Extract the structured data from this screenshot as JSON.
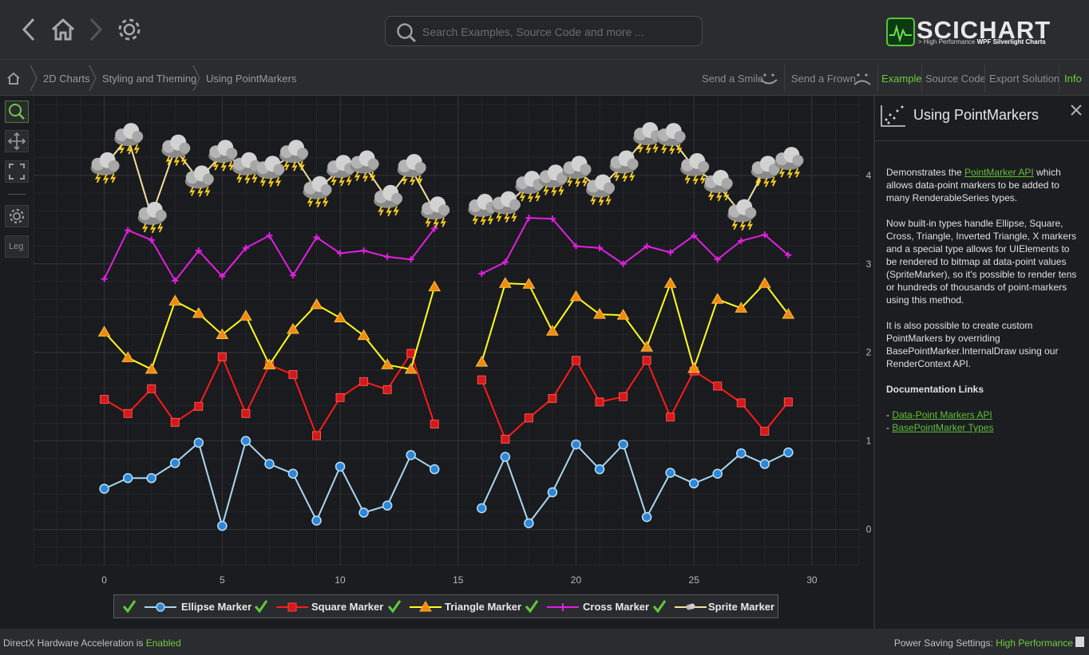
{
  "nav": {
    "back_icon": "chevron-left-icon",
    "home_icon": "home-icon",
    "forward_icon": "chevron-right-icon",
    "settings_icon": "gear-icon"
  },
  "search": {
    "placeholder": "Search Examples, Source Code and more ..."
  },
  "logo": {
    "word": "SCICHART",
    "tagline_prefix": "> High Performance ",
    "tagline_bold": "WPF Silverlight Charts"
  },
  "breadcrumb": [
    "2D Charts",
    "Styling and Theming",
    "Using PointMarkers"
  ],
  "actions": {
    "smile": "Send a Smile",
    "frown": "Send a Frown",
    "example": "Example",
    "source": "Source Code",
    "export": "Export Solution",
    "info": "Info"
  },
  "tools": {
    "legend_label": "Leg"
  },
  "panel": {
    "title": "Using PointMarkers",
    "p1_pre": "Demonstrates the ",
    "p1_link": "PointMarker API",
    "p1_post": " which allows data-point markers to be added to many RenderableSeries types.",
    "p2": "Now built-in types handle Ellipse, Square, Cross, Triangle, Inverted Triangle, X markers and a special type allows for UIElements to be rendered to bitmap at data-point values (SpriteMarker), so it's possible to render tens or hundreds of thousands of point-markers using this method.",
    "p3": "It is also possible to create custom PointMarkers by overriding BasePointMarker.InternalDraw using our RenderContext API.",
    "doc_heading": "Documentation Links",
    "link1": "Data-Point Markers API",
    "link2": "BasePointMarker Types",
    "dash": "- "
  },
  "status": {
    "left_label": "DirectX Hardware Acceleration is ",
    "left_value": "Enabled",
    "right_label": "Power Saving Settings: ",
    "right_value": "High Performance"
  },
  "legend": [
    "Ellipse Marker",
    "Square Marker",
    "Triangle Marker",
    "Cross Marker",
    "Sprite Marker"
  ],
  "chart_data": {
    "type": "line",
    "xlim": [
      -3,
      32
    ],
    "ylim": [
      -0.4,
      4.9
    ],
    "x_ticks": [
      0,
      5,
      10,
      15,
      20,
      25,
      30
    ],
    "y_ticks": [
      0,
      1,
      2,
      3,
      4
    ],
    "grid": true,
    "legend_position": "bottom-center",
    "x": [
      0,
      1,
      2,
      3,
      4,
      5,
      6,
      7,
      8,
      9,
      10,
      11,
      12,
      13,
      14,
      null,
      16,
      17,
      18,
      19,
      20,
      21,
      22,
      23,
      24,
      25,
      26,
      27,
      28,
      29
    ],
    "series": [
      {
        "name": "Ellipse Marker",
        "color": "#a9d7f0",
        "marker": "ellipse",
        "values": [
          0.46,
          0.58,
          0.58,
          0.75,
          0.98,
          0.04,
          1.0,
          0.74,
          0.63,
          0.1,
          0.71,
          0.19,
          0.27,
          0.84,
          0.68,
          null,
          0.24,
          0.82,
          0.07,
          0.42,
          0.96,
          0.68,
          0.96,
          0.14,
          0.64,
          0.52,
          0.63,
          0.86,
          0.74,
          0.87
        ]
      },
      {
        "name": "Square Marker",
        "color": "#ff1a1a",
        "marker": "square",
        "values": [
          1.47,
          1.31,
          1.59,
          1.21,
          1.39,
          1.95,
          1.31,
          1.86,
          1.75,
          1.06,
          1.49,
          1.67,
          1.58,
          1.99,
          1.19,
          null,
          1.69,
          1.02,
          1.26,
          1.48,
          1.91,
          1.44,
          1.5,
          1.91,
          1.27,
          1.79,
          1.62,
          1.43,
          1.11,
          1.44
        ]
      },
      {
        "name": "Triangle Marker",
        "color": "#ffff1a",
        "marker": "triangle",
        "values": [
          2.23,
          1.94,
          1.81,
          2.58,
          2.44,
          2.2,
          2.41,
          1.86,
          2.26,
          2.54,
          2.39,
          2.19,
          1.86,
          1.81,
          2.74,
          null,
          1.89,
          2.78,
          2.77,
          2.24,
          2.63,
          2.43,
          2.42,
          2.06,
          2.78,
          1.82,
          2.6,
          2.5,
          2.78,
          2.43
        ]
      },
      {
        "name": "Cross Marker",
        "color": "#e020e0",
        "marker": "cross",
        "values": [
          2.83,
          3.38,
          3.27,
          2.81,
          3.15,
          2.86,
          3.18,
          3.32,
          2.87,
          3.3,
          3.12,
          3.15,
          3.08,
          3.05,
          3.4,
          null,
          2.89,
          3.02,
          3.52,
          3.51,
          3.2,
          3.18,
          3.0,
          3.2,
          3.13,
          3.32,
          3.05,
          3.26,
          3.33,
          3.1
        ]
      },
      {
        "name": "Sprite Marker",
        "color": "#f0e0a0",
        "marker": "sprite",
        "values": [
          4.1,
          4.43,
          3.54,
          4.3,
          3.95,
          4.24,
          4.1,
          4.06,
          4.24,
          3.83,
          4.07,
          4.12,
          3.73,
          4.08,
          3.6,
          null,
          3.63,
          3.66,
          3.89,
          3.96,
          4.06,
          3.85,
          4.12,
          4.44,
          4.43,
          4.09,
          3.9,
          3.57,
          4.06,
          4.16
        ]
      }
    ]
  }
}
